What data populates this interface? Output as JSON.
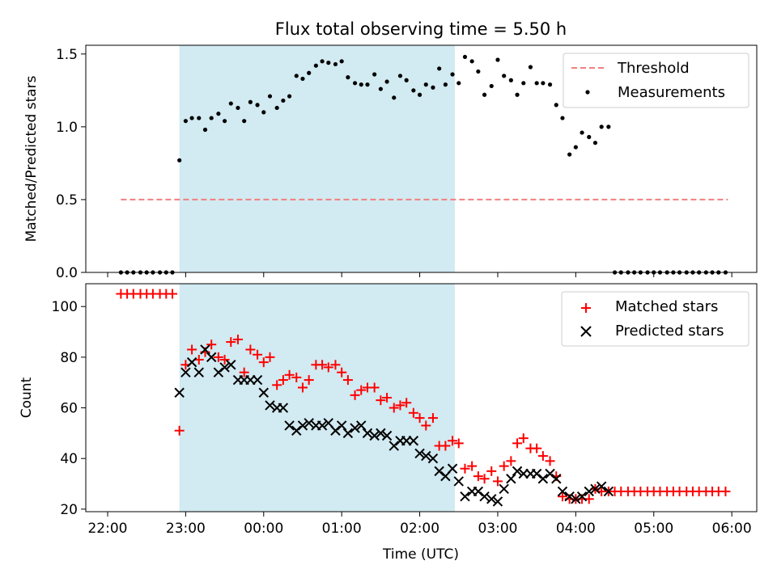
{
  "title": "Flux total observing time = 5.50 h",
  "xlabel": "Time (UTC)",
  "x_ticks": [
    "22:00",
    "23:00",
    "00:00",
    "01:00",
    "02:00",
    "03:00",
    "04:00",
    "05:00",
    "06:00"
  ],
  "colors": {
    "threshold": "#f08080",
    "measurements": "#000000",
    "matched": "#ff0000",
    "predicted": "#000000",
    "observing_window": "#add8e6"
  },
  "chart_data": [
    {
      "type": "scatter",
      "ylabel": "Matched/Predicted stars",
      "xlim": [
        -0.28,
        8.32
      ],
      "ylim": [
        0,
        1.56
      ],
      "y_ticks": [
        0.0,
        0.5,
        1.0,
        1.5
      ],
      "y_tick_labels": [
        "0.0",
        "0.5",
        "1.0",
        "1.5"
      ],
      "shaded_region": [
        0.92,
        4.45
      ],
      "legend": [
        "Threshold",
        "Measurements"
      ],
      "legend_position": "top-right",
      "threshold": {
        "name": "Threshold",
        "y": 0.5,
        "x_range": [
          0.17,
          7.95
        ]
      },
      "series": [
        {
          "name": "Measurements",
          "x": [
            0.17,
            0.25,
            0.33,
            0.42,
            0.5,
            0.58,
            0.67,
            0.75,
            0.83,
            0.92,
            1.0,
            1.08,
            1.17,
            1.25,
            1.33,
            1.42,
            1.5,
            1.58,
            1.67,
            1.75,
            1.83,
            1.92,
            2.0,
            2.08,
            2.17,
            2.25,
            2.33,
            2.42,
            2.5,
            2.58,
            2.67,
            2.75,
            2.83,
            2.92,
            3.0,
            3.08,
            3.17,
            3.25,
            3.33,
            3.42,
            3.5,
            3.58,
            3.67,
            3.75,
            3.83,
            3.92,
            4.0,
            4.08,
            4.17,
            4.25,
            4.33,
            4.42,
            4.5,
            4.58,
            4.67,
            4.75,
            4.83,
            4.92,
            5.0,
            5.08,
            5.17,
            5.25,
            5.33,
            5.42,
            5.5,
            5.58,
            5.67,
            5.75,
            5.83,
            5.92,
            6.0,
            6.08,
            6.17,
            6.25,
            6.33,
            6.42,
            6.5,
            6.58,
            6.67,
            6.75,
            6.83,
            6.92,
            7.0,
            7.08,
            7.17,
            7.25,
            7.33,
            7.42,
            7.5,
            7.58,
            7.67,
            7.75,
            7.83,
            7.92
          ],
          "y": [
            0,
            0,
            0,
            0,
            0,
            0,
            0,
            0,
            0,
            0.77,
            1.04,
            1.06,
            1.06,
            0.98,
            1.06,
            1.09,
            1.04,
            1.16,
            1.13,
            1.04,
            1.17,
            1.15,
            1.1,
            1.21,
            1.13,
            1.18,
            1.21,
            1.35,
            1.33,
            1.37,
            1.42,
            1.45,
            1.44,
            1.43,
            1.45,
            1.34,
            1.3,
            1.29,
            1.29,
            1.36,
            1.26,
            1.31,
            1.2,
            1.35,
            1.32,
            1.25,
            1.22,
            1.29,
            1.27,
            1.4,
            1.29,
            1.36,
            1.3,
            1.48,
            1.45,
            1.38,
            1.22,
            1.28,
            1.46,
            1.35,
            1.32,
            1.22,
            1.3,
            1.41,
            1.3,
            1.3,
            1.29,
            1.15,
            1.06,
            0.81,
            0.86,
            0.96,
            0.93,
            0.89,
            1.0,
            1.0,
            0,
            0,
            0,
            0,
            0,
            0,
            0,
            0,
            0,
            0,
            0,
            0,
            0,
            0,
            0,
            0,
            0,
            0
          ]
        }
      ]
    },
    {
      "type": "scatter",
      "ylabel": "Count",
      "xlim": [
        -0.28,
        8.32
      ],
      "ylim": [
        19,
        109
      ],
      "y_ticks": [
        20,
        40,
        60,
        80,
        100
      ],
      "y_tick_labels": [
        "20",
        "40",
        "60",
        "80",
        "100"
      ],
      "shaded_region": [
        0.92,
        4.45
      ],
      "legend": [
        "Matched stars",
        "Predicted stars"
      ],
      "legend_position": "top-right",
      "series": [
        {
          "name": "Matched stars",
          "marker": "+",
          "x": [
            0.17,
            0.25,
            0.33,
            0.42,
            0.5,
            0.58,
            0.67,
            0.75,
            0.83,
            0.92,
            1.0,
            1.08,
            1.17,
            1.25,
            1.33,
            1.42,
            1.5,
            1.58,
            1.67,
            1.75,
            1.83,
            1.92,
            2.0,
            2.08,
            2.17,
            2.25,
            2.33,
            2.42,
            2.5,
            2.58,
            2.67,
            2.75,
            2.83,
            2.92,
            3.0,
            3.08,
            3.17,
            3.25,
            3.33,
            3.42,
            3.5,
            3.58,
            3.67,
            3.75,
            3.83,
            3.92,
            4.0,
            4.08,
            4.17,
            4.25,
            4.33,
            4.42,
            4.5,
            4.58,
            4.67,
            4.75,
            4.83,
            4.92,
            5.0,
            5.08,
            5.17,
            5.25,
            5.33,
            5.42,
            5.5,
            5.58,
            5.67,
            5.75,
            5.83,
            5.92,
            6.0,
            6.08,
            6.17,
            6.25,
            6.33,
            6.42,
            6.5,
            6.58,
            6.67,
            6.75,
            6.83,
            6.92,
            7.0,
            7.08,
            7.17,
            7.25,
            7.33,
            7.42,
            7.5,
            7.58,
            7.67,
            7.75,
            7.83,
            7.92
          ],
          "y": [
            105,
            105,
            105,
            105,
            105,
            105,
            105,
            105,
            105,
            51,
            77,
            83,
            79,
            82,
            85,
            80,
            79,
            86,
            87,
            74,
            83,
            81,
            78,
            80,
            69,
            71,
            73,
            72,
            68,
            71,
            77,
            77,
            76,
            77,
            74,
            71,
            65,
            67,
            68,
            68,
            63,
            64,
            60,
            61,
            62,
            58,
            56,
            53,
            56,
            45,
            45,
            47,
            46,
            36,
            37,
            33,
            32,
            35,
            31,
            37,
            39,
            46,
            48,
            44,
            44,
            41,
            39,
            33,
            25,
            24,
            24,
            24,
            24,
            28,
            27,
            27,
            27,
            27,
            27,
            27,
            27,
            27,
            27,
            27,
            27,
            27,
            27,
            27,
            27,
            27,
            27,
            27,
            27,
            27
          ]
        },
        {
          "name": "Predicted stars",
          "marker": "x",
          "x": [
            0.92,
            1.0,
            1.08,
            1.17,
            1.25,
            1.33,
            1.42,
            1.5,
            1.58,
            1.67,
            1.75,
            1.83,
            1.92,
            2.0,
            2.08,
            2.17,
            2.25,
            2.33,
            2.42,
            2.5,
            2.58,
            2.67,
            2.75,
            2.83,
            2.92,
            3.0,
            3.08,
            3.17,
            3.25,
            3.33,
            3.42,
            3.5,
            3.58,
            3.67,
            3.75,
            3.83,
            3.92,
            4.0,
            4.08,
            4.17,
            4.25,
            4.33,
            4.42,
            4.5,
            4.58,
            4.67,
            4.75,
            4.83,
            4.92,
            5.0,
            5.08,
            5.17,
            5.25,
            5.33,
            5.42,
            5.5,
            5.58,
            5.67,
            5.75,
            5.83,
            5.92,
            6.0,
            6.08,
            6.17,
            6.25,
            6.33,
            6.42
          ],
          "y": [
            66,
            74,
            78,
            74,
            83,
            80,
            74,
            76,
            77,
            71,
            71,
            71,
            71,
            66,
            61,
            60,
            60,
            53,
            51,
            53,
            54,
            53,
            53,
            54,
            51,
            53,
            50,
            52,
            53,
            50,
            49,
            50,
            49,
            45,
            47,
            47,
            47,
            42,
            41,
            40,
            35,
            33,
            36,
            31,
            25,
            27,
            27,
            25,
            24,
            23,
            28,
            32,
            35,
            34,
            34,
            34,
            32,
            34,
            32,
            27,
            25,
            24,
            25,
            27,
            28,
            29,
            27
          ]
        }
      ]
    }
  ]
}
